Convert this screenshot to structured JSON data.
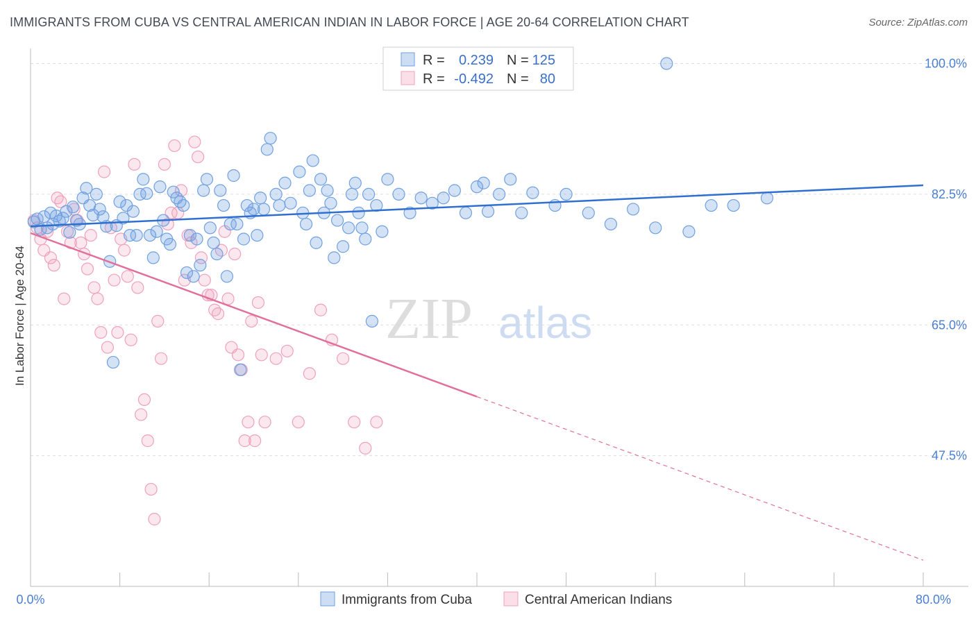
{
  "title": "IMMIGRANTS FROM CUBA VS CENTRAL AMERICAN INDIAN IN LABOR FORCE | AGE 20-64 CORRELATION CHART",
  "source": "Source: ZipAtlas.com",
  "watermark": {
    "zip": "ZIP",
    "atlas": "atlas"
  },
  "legend": {
    "r_label": "R =",
    "n_label": "N =",
    "rows": [
      {
        "r": "0.239",
        "n": "125",
        "color": "#6fa0e0"
      },
      {
        "r": "-0.492",
        "n": "80",
        "color": "#f0a0bc"
      }
    ]
  },
  "chart_data": {
    "type": "scatter",
    "title": "IMMIGRANTS FROM CUBA VS CENTRAL AMERICAN INDIAN IN LABOR FORCE | AGE 20-64 CORRELATION CHART",
    "xlabel": "",
    "ylabel": "In Labor Force | Age 20-64",
    "xlim": [
      0,
      80
    ],
    "ylim": [
      30,
      102
    ],
    "x_tick_labels": [
      "0.0%",
      "80.0%"
    ],
    "y_ticks": [
      47.5,
      65.0,
      82.5,
      100.0
    ],
    "y_tick_labels": [
      "47.5%",
      "65.0%",
      "82.5%",
      "100.0%"
    ],
    "grid": true,
    "legend_position": "top-center",
    "series": [
      {
        "name": "Immigrants from Cuba",
        "color": "#6fa0e0",
        "trend": {
          "x0": 0,
          "y0": 78.2,
          "x1": 80,
          "y1": 83.7,
          "style": "solid"
        },
        "points": [
          [
            0.3,
            78.8
          ],
          [
            0.6,
            79.2
          ],
          [
            0.9,
            77.8
          ],
          [
            1.2,
            79.5
          ],
          [
            1.5,
            78.0
          ],
          [
            1.8,
            80.0
          ],
          [
            2.0,
            78.5
          ],
          [
            2.3,
            79.6
          ],
          [
            2.6,
            78.9
          ],
          [
            2.9,
            79.3
          ],
          [
            3.2,
            80.2
          ],
          [
            3.5,
            77.4
          ],
          [
            3.8,
            80.8
          ],
          [
            4.1,
            79.0
          ],
          [
            4.4,
            78.5
          ],
          [
            4.7,
            82.0
          ],
          [
            5.0,
            83.3
          ],
          [
            5.3,
            81.0
          ],
          [
            5.6,
            79.7
          ],
          [
            5.9,
            82.5
          ],
          [
            6.2,
            80.5
          ],
          [
            6.5,
            79.5
          ],
          [
            6.8,
            78.2
          ],
          [
            7.1,
            73.5
          ],
          [
            7.4,
            60.0
          ],
          [
            7.7,
            78.3
          ],
          [
            8.0,
            81.5
          ],
          [
            8.3,
            79.3
          ],
          [
            8.6,
            81.0
          ],
          [
            8.9,
            77.0
          ],
          [
            9.2,
            80.2
          ],
          [
            9.5,
            77.0
          ],
          [
            9.8,
            82.5
          ],
          [
            10.1,
            84.5
          ],
          [
            10.4,
            82.6
          ],
          [
            10.7,
            77.0
          ],
          [
            11.0,
            74.0
          ],
          [
            11.3,
            77.5
          ],
          [
            11.6,
            83.5
          ],
          [
            11.9,
            79.0
          ],
          [
            12.2,
            76.5
          ],
          [
            12.5,
            75.8
          ],
          [
            12.8,
            82.8
          ],
          [
            13.1,
            82.0
          ],
          [
            13.4,
            81.5
          ],
          [
            13.7,
            81.0
          ],
          [
            14.0,
            72.0
          ],
          [
            14.3,
            77.0
          ],
          [
            14.6,
            71.5
          ],
          [
            14.9,
            76.5
          ],
          [
            15.2,
            73.0
          ],
          [
            15.5,
            83.0
          ],
          [
            15.8,
            84.5
          ],
          [
            16.1,
            78.0
          ],
          [
            16.4,
            76.0
          ],
          [
            16.7,
            74.5
          ],
          [
            17.0,
            83.0
          ],
          [
            17.3,
            81.0
          ],
          [
            17.6,
            71.5
          ],
          [
            17.9,
            78.5
          ],
          [
            18.2,
            85.0
          ],
          [
            18.5,
            78.5
          ],
          [
            18.8,
            59.0
          ],
          [
            19.1,
            76.5
          ],
          [
            19.4,
            81.0
          ],
          [
            19.7,
            80.0
          ],
          [
            20.0,
            80.5
          ],
          [
            20.3,
            77.0
          ],
          [
            20.6,
            82.0
          ],
          [
            20.9,
            80.5
          ],
          [
            21.2,
            88.5
          ],
          [
            21.5,
            90.0
          ],
          [
            22.0,
            82.5
          ],
          [
            22.3,
            81.0
          ],
          [
            22.8,
            84.0
          ],
          [
            23.3,
            81.3
          ],
          [
            24.1,
            85.5
          ],
          [
            24.4,
            80.0
          ],
          [
            24.7,
            78.5
          ],
          [
            25.0,
            83.0
          ],
          [
            25.3,
            87.0
          ],
          [
            25.6,
            76.0
          ],
          [
            26.0,
            84.5
          ],
          [
            26.3,
            80.0
          ],
          [
            26.6,
            83.0
          ],
          [
            26.9,
            81.3
          ],
          [
            27.2,
            74.0
          ],
          [
            27.5,
            79.0
          ],
          [
            28.0,
            75.5
          ],
          [
            28.5,
            78.0
          ],
          [
            28.8,
            82.5
          ],
          [
            29.1,
            84.0
          ],
          [
            29.4,
            80.0
          ],
          [
            29.7,
            78.0
          ],
          [
            30.0,
            76.5
          ],
          [
            30.3,
            82.5
          ],
          [
            30.6,
            65.5
          ],
          [
            31.0,
            81.0
          ],
          [
            31.5,
            77.5
          ],
          [
            32.0,
            84.5
          ],
          [
            33.0,
            82.5
          ],
          [
            34.0,
            80.0
          ],
          [
            35.0,
            82.0
          ],
          [
            36.0,
            81.3
          ],
          [
            37.0,
            82.0
          ],
          [
            38.0,
            83.0
          ],
          [
            39.0,
            80.0
          ],
          [
            40.0,
            83.5
          ],
          [
            40.6,
            84.0
          ],
          [
            41.0,
            80.2
          ],
          [
            42.0,
            82.5
          ],
          [
            43.0,
            84.5
          ],
          [
            44.0,
            80.0
          ],
          [
            45.0,
            82.7
          ],
          [
            47.0,
            81.0
          ],
          [
            48.0,
            82.5
          ],
          [
            50.0,
            80.0
          ],
          [
            52.0,
            78.5
          ],
          [
            54.0,
            80.5
          ],
          [
            56.0,
            78.0
          ],
          [
            57.0,
            100.0
          ],
          [
            59.0,
            77.5
          ],
          [
            61.0,
            81.0
          ],
          [
            63.0,
            81.0
          ],
          [
            66.0,
            82.0
          ]
        ]
      },
      {
        "name": "Central American Indians",
        "color": "#f0a0bc",
        "trend": {
          "x0": 0,
          "y0": 77.3,
          "x1": 80,
          "y1": 33.5,
          "solid_until_x": 40
        },
        "points": [
          [
            0.3,
            79.0
          ],
          [
            0.6,
            78.0
          ],
          [
            0.9,
            76.5
          ],
          [
            1.2,
            75.0
          ],
          [
            1.5,
            77.5
          ],
          [
            1.8,
            74.0
          ],
          [
            2.1,
            73.0
          ],
          [
            2.4,
            82.0
          ],
          [
            2.7,
            81.5
          ],
          [
            3.0,
            68.5
          ],
          [
            3.3,
            77.5
          ],
          [
            3.6,
            76.0
          ],
          [
            3.9,
            80.5
          ],
          [
            4.2,
            79.0
          ],
          [
            4.5,
            76.0
          ],
          [
            4.8,
            74.5
          ],
          [
            5.1,
            72.5
          ],
          [
            5.4,
            77.0
          ],
          [
            5.7,
            70.0
          ],
          [
            6.0,
            68.5
          ],
          [
            6.3,
            64.0
          ],
          [
            6.6,
            85.5
          ],
          [
            6.9,
            62.0
          ],
          [
            7.2,
            78.0
          ],
          [
            7.5,
            71.0
          ],
          [
            7.8,
            64.0
          ],
          [
            8.1,
            76.5
          ],
          [
            8.4,
            75.0
          ],
          [
            8.7,
            71.5
          ],
          [
            9.0,
            63.0
          ],
          [
            9.3,
            86.5
          ],
          [
            9.6,
            70.0
          ],
          [
            9.9,
            53.0
          ],
          [
            10.2,
            55.0
          ],
          [
            10.5,
            49.5
          ],
          [
            10.8,
            43.0
          ],
          [
            11.1,
            39.0
          ],
          [
            11.4,
            65.5
          ],
          [
            11.7,
            60.5
          ],
          [
            12.0,
            86.5
          ],
          [
            12.3,
            78.5
          ],
          [
            12.6,
            80.0
          ],
          [
            12.9,
            89.0
          ],
          [
            13.2,
            80.0
          ],
          [
            13.5,
            83.0
          ],
          [
            13.8,
            71.0
          ],
          [
            14.1,
            77.0
          ],
          [
            14.4,
            76.0
          ],
          [
            14.7,
            89.5
          ],
          [
            15.0,
            87.5
          ],
          [
            15.3,
            74.0
          ],
          [
            15.6,
            71.0
          ],
          [
            15.9,
            69.0
          ],
          [
            16.2,
            69.0
          ],
          [
            16.5,
            67.0
          ],
          [
            16.8,
            66.5
          ],
          [
            17.1,
            75.0
          ],
          [
            17.4,
            77.5
          ],
          [
            17.7,
            68.5
          ],
          [
            18.0,
            62.0
          ],
          [
            18.3,
            74.5
          ],
          [
            18.6,
            61.0
          ],
          [
            18.9,
            59.0
          ],
          [
            19.2,
            49.5
          ],
          [
            19.5,
            52.0
          ],
          [
            19.8,
            65.5
          ],
          [
            20.1,
            49.5
          ],
          [
            20.4,
            68.0
          ],
          [
            20.7,
            61.0
          ],
          [
            21.0,
            52.0
          ],
          [
            22.0,
            60.5
          ],
          [
            23.0,
            61.5
          ],
          [
            24.0,
            52.0
          ],
          [
            25.0,
            58.5
          ],
          [
            26.0,
            67.0
          ],
          [
            27.0,
            63.0
          ],
          [
            28.0,
            60.5
          ],
          [
            29.0,
            52.0
          ],
          [
            30.0,
            48.5
          ],
          [
            31.0,
            52.0
          ]
        ]
      }
    ]
  },
  "bottom_legend": [
    {
      "label": "Immigrants from Cuba",
      "color": "#6fa0e0"
    },
    {
      "label": "Central American Indians",
      "color": "#f0a0bc"
    }
  ]
}
